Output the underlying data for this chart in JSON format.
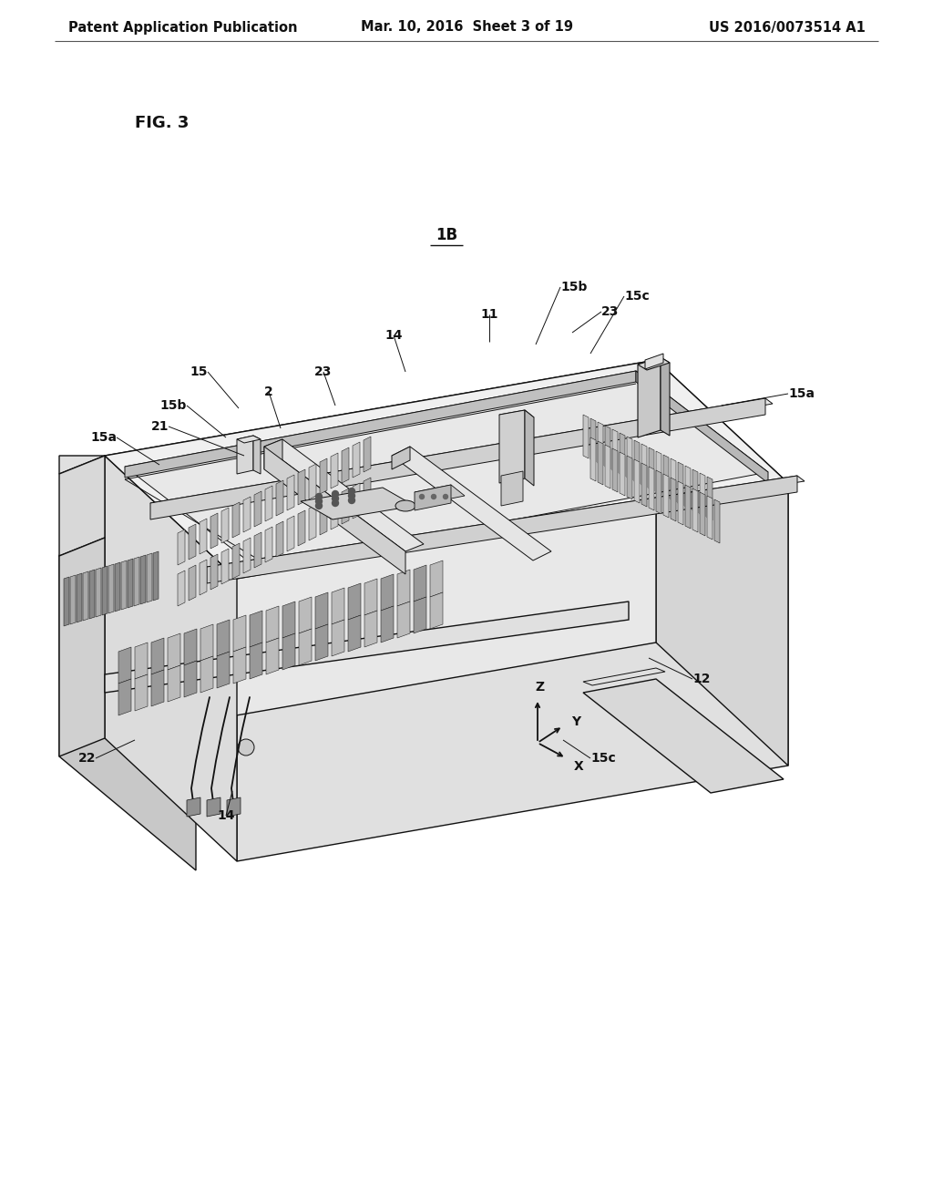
{
  "background_color": "#ffffff",
  "header_left": "Patent Application Publication",
  "header_center": "Mar. 10, 2016  Sheet 3 of 19",
  "header_right": "US 2016/0073514 A1",
  "fig_label": "FIG. 3",
  "device_label": "1B",
  "header_fontsize": 10.5,
  "fig_label_fontsize": 13,
  "device_label_fontsize": 12,
  "ref_fontsize": 10,
  "line_color": "#111111",
  "thin_lw": 0.7,
  "med_lw": 1.0,
  "thick_lw": 1.3,
  "c_white": "#ffffff",
  "c_light": "#f0f0f0",
  "c_mid": "#d8d8d8",
  "c_dark": "#b8b8b8",
  "c_darker": "#989898"
}
